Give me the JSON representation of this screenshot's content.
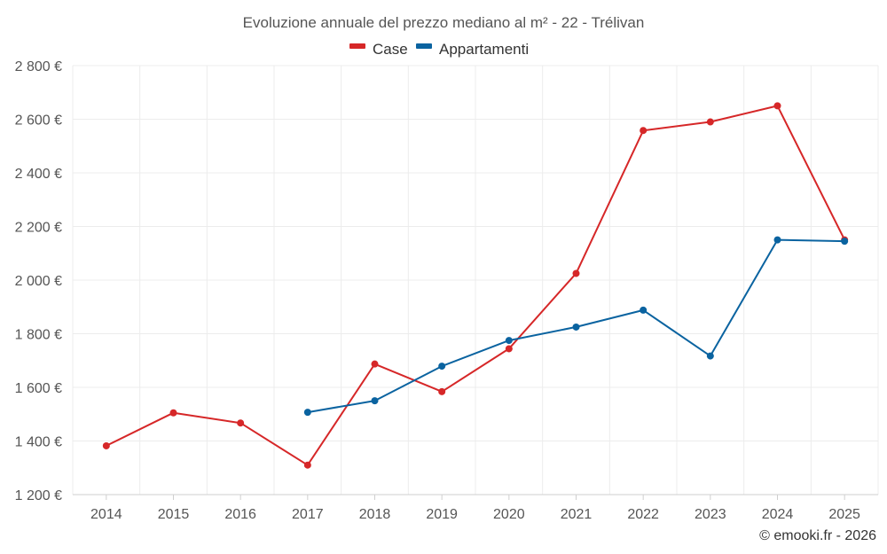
{
  "chart_data": {
    "type": "line",
    "title": "Evoluzione annuale del prezzo mediano al m² - 22 - Trélivan",
    "categories": [
      "2014",
      "2015",
      "2016",
      "2017",
      "2018",
      "2019",
      "2020",
      "2021",
      "2022",
      "2023",
      "2024",
      "2025"
    ],
    "series": [
      {
        "name": "Case",
        "color": "#d62728",
        "values": [
          1382,
          1505,
          1467,
          1310,
          1687,
          1584,
          1744,
          2025,
          2558,
          2590,
          2650,
          2150
        ]
      },
      {
        "name": "Appartamenti",
        "color": "#0a63a0",
        "values": [
          null,
          null,
          null,
          1507,
          1550,
          1679,
          1775,
          1825,
          1888,
          1717,
          2150,
          2145
        ]
      }
    ],
    "yticks": [
      1200,
      1400,
      1600,
      1800,
      2000,
      2200,
      2400,
      2600,
      2800
    ],
    "ytick_labels": [
      "1 200 €",
      "1 400 €",
      "1 600 €",
      "1 800 €",
      "2 000 €",
      "2 200 €",
      "2 400 €",
      "2 600 €",
      "2 800 €"
    ],
    "ylim": [
      1200,
      2800
    ],
    "xlabel": "",
    "ylabel": "",
    "grid": true,
    "legend_position": "top-center"
  },
  "credit": "© emooki.fr - 2026"
}
